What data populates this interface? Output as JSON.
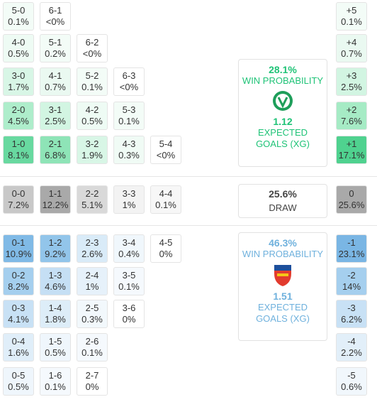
{
  "home": {
    "rows": [
      [
        {
          "score": "5-0",
          "pct": "0.1%",
          "color": "#f3fcf7"
        },
        {
          "score": "6-1",
          "pct": "<0%",
          "color": "#ffffff"
        }
      ],
      [
        {
          "score": "4-0",
          "pct": "0.5%",
          "color": "#eefbf4"
        },
        {
          "score": "5-1",
          "pct": "0.2%",
          "color": "#f3fcf7"
        },
        {
          "score": "6-2",
          "pct": "<0%",
          "color": "#ffffff"
        }
      ],
      [
        {
          "score": "3-0",
          "pct": "1.7%",
          "color": "#d8f6e6"
        },
        {
          "score": "4-1",
          "pct": "0.7%",
          "color": "#eaf9f1"
        },
        {
          "score": "5-2",
          "pct": "0.1%",
          "color": "#f3fcf7"
        },
        {
          "score": "6-3",
          "pct": "<0%",
          "color": "#ffffff"
        }
      ],
      [
        {
          "score": "2-0",
          "pct": "4.5%",
          "color": "#aeedcb"
        },
        {
          "score": "3-1",
          "pct": "2.5%",
          "color": "#d2f5e2"
        },
        {
          "score": "4-2",
          "pct": "0.5%",
          "color": "#eefbf4"
        },
        {
          "score": "5-3",
          "pct": "0.1%",
          "color": "#f3fcf7"
        }
      ],
      [
        {
          "score": "1-0",
          "pct": "8.1%",
          "color": "#68d9a0"
        },
        {
          "score": "2-1",
          "pct": "6.8%",
          "color": "#8ee4b7"
        },
        {
          "score": "3-2",
          "pct": "1.9%",
          "color": "#d8f6e6"
        },
        {
          "score": "4-3",
          "pct": "0.3%",
          "color": "#f0fbf5"
        },
        {
          "score": "5-4",
          "pct": "<0%",
          "color": "#ffffff"
        }
      ]
    ],
    "diff": [
      {
        "score": "+5",
        "pct": "0.1%",
        "color": "#f3fcf7"
      },
      {
        "score": "+4",
        "pct": "0.7%",
        "color": "#eaf9f1"
      },
      {
        "score": "+3",
        "pct": "2.5%",
        "color": "#d2f5e2"
      },
      {
        "score": "+2",
        "pct": "7.6%",
        "color": "#a6ebc5"
      },
      {
        "score": "+1",
        "pct": "17.1%",
        "color": "#4fd28f"
      }
    ],
    "panel": {
      "probability": "28.1%",
      "probability_label": "WIN PROBABILITY",
      "xg": "1.12",
      "xg_label": "EXPECTED GOALS (XG)",
      "color": "#1fc377"
    }
  },
  "draw": {
    "row": [
      {
        "score": "0-0",
        "pct": "7.2%",
        "color": "#c8c8c8"
      },
      {
        "score": "1-1",
        "pct": "12.2%",
        "color": "#a9a9a9"
      },
      {
        "score": "2-2",
        "pct": "5.1%",
        "color": "#d9d9d9"
      },
      {
        "score": "3-3",
        "pct": "1%",
        "color": "#f3f3f3"
      },
      {
        "score": "4-4",
        "pct": "0.1%",
        "color": "#f7f7f7"
      }
    ],
    "diff": {
      "score": "0",
      "pct": "25.6%",
      "color": "#a9a9a9"
    },
    "panel": {
      "probability": "25.6%",
      "probability_label": "DRAW",
      "color": "#444444"
    }
  },
  "away": {
    "rows": [
      [
        {
          "score": "0-1",
          "pct": "10.9%",
          "color": "#80bae6"
        },
        {
          "score": "1-2",
          "pct": "9.2%",
          "color": "#92c5ea"
        },
        {
          "score": "2-3",
          "pct": "2.6%",
          "color": "#d9ebf8"
        },
        {
          "score": "3-4",
          "pct": "0.4%",
          "color": "#f0f7fc"
        },
        {
          "score": "4-5",
          "pct": "0%",
          "color": "#ffffff"
        }
      ],
      [
        {
          "score": "0-2",
          "pct": "8.2%",
          "color": "#a5cfee"
        },
        {
          "score": "1-3",
          "pct": "4.6%",
          "color": "#c5dff4"
        },
        {
          "score": "2-4",
          "pct": "1%",
          "color": "#e6f1fa"
        },
        {
          "score": "3-5",
          "pct": "0.1%",
          "color": "#f5f9fd"
        }
      ],
      [
        {
          "score": "0-3",
          "pct": "4.1%",
          "color": "#c8e1f5"
        },
        {
          "score": "1-4",
          "pct": "1.8%",
          "color": "#ddedf8"
        },
        {
          "score": "2-5",
          "pct": "0.3%",
          "color": "#f2f8fc"
        },
        {
          "score": "3-6",
          "pct": "0%",
          "color": "#ffffff"
        }
      ],
      [
        {
          "score": "0-4",
          "pct": "1.6%",
          "color": "#e0eef9"
        },
        {
          "score": "1-5",
          "pct": "0.5%",
          "color": "#eff6fc"
        },
        {
          "score": "2-6",
          "pct": "0.1%",
          "color": "#f5f9fd"
        }
      ],
      [
        {
          "score": "0-5",
          "pct": "0.5%",
          "color": "#eff6fc"
        },
        {
          "score": "1-6",
          "pct": "0.1%",
          "color": "#f5f9fd"
        },
        {
          "score": "2-7",
          "pct": "0%",
          "color": "#ffffff"
        }
      ]
    ],
    "diff": [
      {
        "score": "-1",
        "pct": "23.1%",
        "color": "#7ab6e4"
      },
      {
        "score": "-2",
        "pct": "14%",
        "color": "#a5cfee"
      },
      {
        "score": "-3",
        "pct": "6.2%",
        "color": "#c8e1f5"
      },
      {
        "score": "-4",
        "pct": "2.2%",
        "color": "#e2eff9"
      },
      {
        "score": "-5",
        "pct": "0.6%",
        "color": "#f1f7fc"
      }
    ],
    "panel": {
      "probability": "46.3%",
      "probability_label": "WIN PROBABILITY",
      "xg": "1.51",
      "xg_label": "EXPECTED GOALS (XG)",
      "color": "#6fb1dd"
    }
  }
}
